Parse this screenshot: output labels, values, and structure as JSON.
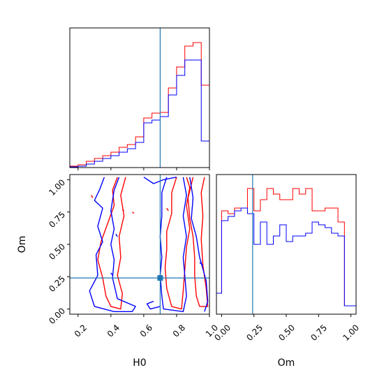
{
  "colors": {
    "red": "#ff0000",
    "blue": "#0000ff",
    "truth": "#1f77b4"
  },
  "chart_data": [
    {
      "type": "histogram",
      "panel": "H0 marginal",
      "xlim": [
        0.15,
        1.0
      ],
      "bin_edges": [
        0.05,
        0.1,
        0.15,
        0.2,
        0.25,
        0.3,
        0.35,
        0.4,
        0.45,
        0.5,
        0.55,
        0.6,
        0.65,
        0.7,
        0.75,
        0.8,
        0.85,
        0.9,
        0.95,
        1.0
      ],
      "truth": 0.7,
      "series": [
        {
          "color": "red",
          "values": [
            0.0,
            0.005,
            0.01,
            0.02,
            0.045,
            0.065,
            0.085,
            0.11,
            0.145,
            0.165,
            0.22,
            0.355,
            0.39,
            0.395,
            0.57,
            0.72,
            0.87,
            0.895,
            0.59
          ]
        },
        {
          "color": "blue",
          "values": [
            0.0,
            0.0,
            0.005,
            0.01,
            0.025,
            0.045,
            0.065,
            0.085,
            0.11,
            0.135,
            0.18,
            0.32,
            0.34,
            0.365,
            0.52,
            0.66,
            0.77,
            0.77,
            0.19
          ]
        }
      ]
    },
    {
      "type": "contour",
      "panel": "H0 vs Om",
      "xlabel": "H0",
      "ylabel": "Om",
      "xlim": [
        0.15,
        1.0
      ],
      "ylim": [
        -0.04,
        1.04
      ],
      "xticks": [
        "0.2",
        "0.4",
        "0.6",
        "0.8",
        "1.0"
      ],
      "yticks": [
        "0.00",
        "0.25",
        "0.50",
        "0.75",
        "1.00"
      ],
      "truth": {
        "x": 0.7,
        "y": 0.24
      },
      "red_contours": [
        [
          [
            0.44,
            1.02
          ],
          [
            0.41,
            0.92
          ],
          [
            0.42,
            0.8
          ],
          [
            0.38,
            0.66
          ],
          [
            0.34,
            0.52
          ],
          [
            0.32,
            0.38
          ],
          [
            0.35,
            0.24
          ],
          [
            0.37,
            0.1
          ],
          [
            0.4,
            0.02
          ],
          [
            0.46,
            0.0
          ],
          [
            0.47,
            0.12
          ],
          [
            0.44,
            0.26
          ],
          [
            0.46,
            0.4
          ],
          [
            0.45,
            0.56
          ],
          [
            0.48,
            0.72
          ],
          [
            0.46,
            0.88
          ],
          [
            0.49,
            1.02
          ]
        ],
        [
          [
            0.8,
            1.02
          ],
          [
            0.77,
            0.9
          ],
          [
            0.77,
            0.74
          ],
          [
            0.74,
            0.6
          ],
          [
            0.74,
            0.46
          ],
          [
            0.73,
            0.32
          ],
          [
            0.74,
            0.16
          ],
          [
            0.77,
            0.02
          ],
          [
            0.83,
            0.0
          ],
          [
            0.84,
            0.14
          ],
          [
            0.85,
            0.3
          ],
          [
            0.86,
            0.48
          ],
          [
            0.88,
            0.62
          ],
          [
            0.86,
            0.8
          ],
          [
            0.88,
            0.94
          ],
          [
            0.86,
            1.02
          ]
        ],
        [
          [
            0.9,
            1.02
          ],
          [
            0.87,
            0.86
          ],
          [
            0.88,
            0.7
          ],
          [
            0.9,
            0.56
          ],
          [
            0.91,
            0.4
          ],
          [
            0.91,
            0.26
          ],
          [
            0.92,
            0.1
          ],
          [
            0.94,
            0.02
          ],
          [
            0.99,
            0.02
          ],
          [
            0.98,
            0.16
          ],
          [
            0.96,
            0.34
          ],
          [
            0.95,
            0.54
          ],
          [
            0.96,
            0.72
          ],
          [
            0.95,
            0.9
          ],
          [
            0.97,
            1.02
          ]
        ],
        [
          [
            0.28,
            0.88
          ],
          [
            0.29,
            0.86
          ]
        ],
        [
          [
            0.47,
            0.77
          ],
          [
            0.48,
            0.76
          ]
        ],
        [
          [
            0.53,
            0.75
          ],
          [
            0.54,
            0.74
          ]
        ],
        [
          [
            0.74,
            0.78
          ],
          [
            0.75,
            0.76
          ]
        ]
      ],
      "blue_contours": [
        [
          [
            0.36,
            1.02
          ],
          [
            0.33,
            0.92
          ],
          [
            0.3,
            0.84
          ],
          [
            0.35,
            0.78
          ],
          [
            0.32,
            0.64
          ],
          [
            0.35,
            0.52
          ],
          [
            0.31,
            0.42
          ],
          [
            0.32,
            0.26
          ],
          [
            0.27,
            0.14
          ],
          [
            0.3,
            0.02
          ],
          [
            0.42,
            -0.02
          ],
          [
            0.53,
            -0.02
          ],
          [
            0.55,
            0.02
          ],
          [
            0.44,
            0.08
          ],
          [
            0.41,
            0.24
          ],
          [
            0.42,
            0.38
          ],
          [
            0.4,
            0.5
          ],
          [
            0.42,
            0.62
          ],
          [
            0.4,
            0.76
          ],
          [
            0.42,
            0.92
          ],
          [
            0.45,
            1.02
          ]
        ],
        [
          [
            0.6,
            1.02
          ],
          [
            0.66,
            0.97
          ],
          [
            0.72,
            1.0
          ],
          [
            0.8,
            1.02
          ]
        ],
        [
          [
            0.66,
            0.06
          ],
          [
            0.62,
            0.04
          ],
          [
            0.64,
            0.0
          ],
          [
            0.7,
            0.02
          ]
        ],
        [
          [
            0.74,
            1.02
          ],
          [
            0.71,
            0.9
          ],
          [
            0.71,
            0.72
          ],
          [
            0.7,
            0.56
          ],
          [
            0.71,
            0.4
          ],
          [
            0.7,
            0.26
          ],
          [
            0.71,
            0.1
          ],
          [
            0.72,
            0.0
          ],
          [
            0.84,
            -0.02
          ],
          [
            0.86,
            0.1
          ],
          [
            0.85,
            0.26
          ],
          [
            0.84,
            0.4
          ],
          [
            0.86,
            0.56
          ],
          [
            0.84,
            0.72
          ],
          [
            0.86,
            0.88
          ],
          [
            0.84,
            1.02
          ]
        ],
        [
          [
            0.88,
            1.02
          ],
          [
            0.9,
            0.86
          ],
          [
            0.89,
            0.7
          ],
          [
            0.92,
            0.56
          ],
          [
            0.94,
            0.4
          ],
          [
            0.98,
            0.22
          ],
          [
            0.99,
            0.06
          ],
          [
            0.97,
            -0.02
          ]
        ],
        [
          [
            0.4,
            0.28
          ],
          [
            0.41,
            0.26
          ]
        ],
        [
          [
            0.43,
            0.58
          ],
          [
            0.44,
            0.56
          ]
        ],
        [
          [
            0.94,
            0.36
          ],
          [
            0.96,
            0.34
          ]
        ]
      ]
    },
    {
      "type": "histogram",
      "panel": "Om marginal",
      "xlabel": "Om",
      "xlim": [
        -0.04,
        1.04
      ],
      "xticks": [
        "0.00",
        "0.25",
        "0.50",
        "0.75",
        "1.00"
      ],
      "bin_edges": [
        -0.04,
        0.0,
        0.05,
        0.1,
        0.15,
        0.2,
        0.25,
        0.3,
        0.35,
        0.4,
        0.45,
        0.5,
        0.55,
        0.6,
        0.65,
        0.7,
        0.75,
        0.8,
        0.85,
        0.9,
        0.95,
        1.0,
        1.04
      ],
      "truth": 0.24,
      "series": [
        {
          "color": "red",
          "values": [
            0.15,
            0.74,
            0.72,
            0.76,
            0.76,
            0.9,
            0.74,
            0.82,
            0.9,
            0.86,
            0.82,
            0.82,
            0.9,
            0.86,
            0.9,
            0.74,
            0.74,
            0.76,
            0.76,
            0.66,
            0.06,
            0.06
          ]
        },
        {
          "color": "blue",
          "values": [
            0.15,
            0.67,
            0.7,
            0.74,
            0.76,
            0.72,
            0.5,
            0.66,
            0.5,
            0.56,
            0.64,
            0.52,
            0.56,
            0.56,
            0.58,
            0.66,
            0.64,
            0.62,
            0.58,
            0.56,
            0.06,
            0.06
          ]
        }
      ]
    }
  ]
}
